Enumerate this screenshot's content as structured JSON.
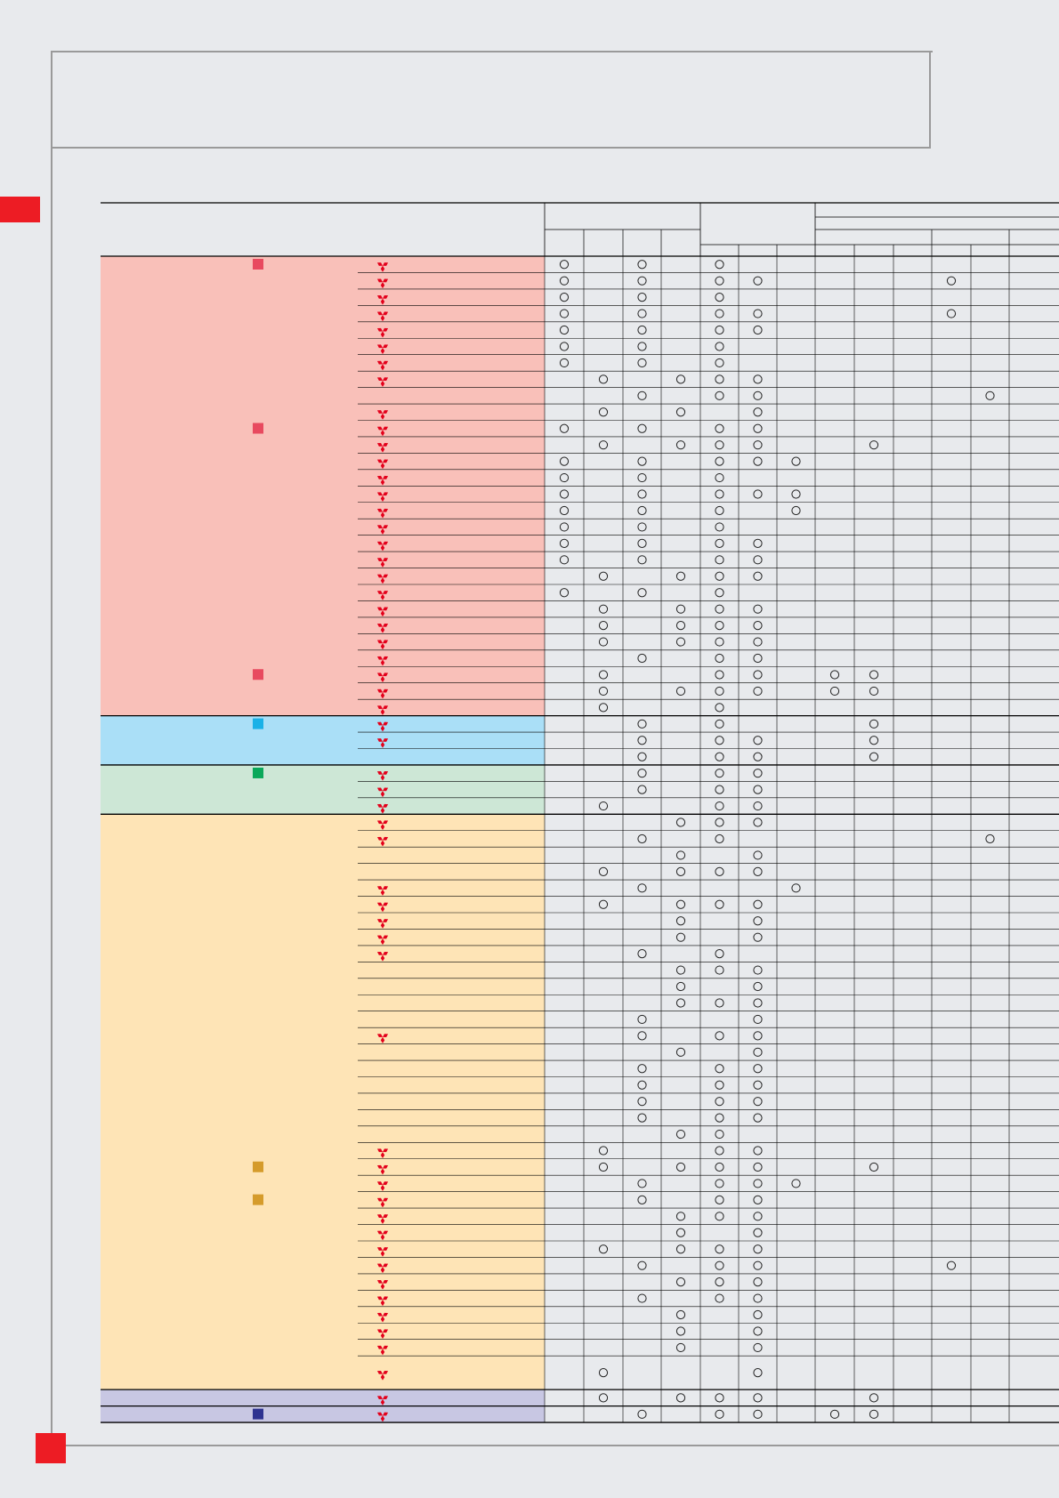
{
  "colors": {
    "background": "#e8eaed",
    "frame": "#9a9a9a",
    "accent": "#ed1c24",
    "group_pink": "#f9c0b9",
    "group_blue": "#aadff7",
    "group_green": "#cde7d6",
    "group_orange": "#fee4b6",
    "group_purple": "#c8c7e3",
    "marker_red": "#e84a5f",
    "marker_cyan": "#1ab1e7",
    "marker_green": "#0aa85a",
    "marker_gold": "#d59b2b",
    "marker_navy": "#2e3390",
    "logo_red": "#e3001b"
  },
  "icons": {
    "brand_logo": "three-diamond-logo-icon",
    "availability_mark": "circle-mark-icon"
  },
  "table": {
    "groups": [
      {
        "name": "pink",
        "color": "group_pink",
        "start": 0,
        "end": 28
      },
      {
        "name": "blue",
        "color": "group_blue",
        "start": 28,
        "end": 31
      },
      {
        "name": "green",
        "color": "group_green",
        "start": 31,
        "end": 34
      },
      {
        "name": "orange",
        "color": "group_orange",
        "start": 34,
        "end": 68
      },
      {
        "name": "purple-tall",
        "color": "group_purple",
        "start": 68,
        "end": 69
      },
      {
        "name": "purple-a",
        "color": "group_purple",
        "start": 69,
        "end": 70
      },
      {
        "name": "purple-b",
        "color": "group_purple",
        "start": 70,
        "end": 71
      }
    ],
    "rows": [
      {
        "logo": true,
        "marks": [
          0,
          2,
          4
        ],
        "marker": "marker_red"
      },
      {
        "logo": true,
        "marks": [
          0,
          2,
          4,
          5,
          10
        ]
      },
      {
        "logo": true,
        "marks": [
          0,
          2,
          4
        ]
      },
      {
        "logo": true,
        "marks": [
          0,
          2,
          4,
          5,
          10
        ]
      },
      {
        "logo": true,
        "marks": [
          0,
          2,
          4,
          5
        ]
      },
      {
        "logo": true,
        "marks": [
          0,
          2,
          4
        ]
      },
      {
        "logo": true,
        "marks": [
          0,
          2,
          4
        ]
      },
      {
        "logo": true,
        "marks": [
          1,
          3,
          4,
          5
        ]
      },
      {
        "logo": false,
        "marks": [
          2,
          4,
          5,
          11
        ]
      },
      {
        "logo": true,
        "marks": [
          1,
          3,
          5
        ]
      },
      {
        "logo": true,
        "marks": [
          0,
          2,
          4,
          5
        ],
        "marker": "marker_red"
      },
      {
        "logo": true,
        "marks": [
          1,
          3,
          4,
          5,
          8
        ]
      },
      {
        "logo": true,
        "marks": [
          0,
          2,
          4,
          5,
          6
        ]
      },
      {
        "logo": true,
        "marks": [
          0,
          2,
          4
        ]
      },
      {
        "logo": true,
        "marks": [
          0,
          2,
          4,
          5,
          6
        ]
      },
      {
        "logo": true,
        "marks": [
          0,
          2,
          4,
          6
        ]
      },
      {
        "logo": true,
        "marks": [
          0,
          2,
          4
        ]
      },
      {
        "logo": true,
        "marks": [
          0,
          2,
          4,
          5
        ]
      },
      {
        "logo": true,
        "marks": [
          0,
          2,
          4,
          5
        ]
      },
      {
        "logo": true,
        "marks": [
          1,
          3,
          4,
          5
        ]
      },
      {
        "logo": true,
        "marks": [
          0,
          2,
          4
        ]
      },
      {
        "logo": true,
        "marks": [
          1,
          3,
          4,
          5
        ]
      },
      {
        "logo": true,
        "marks": [
          1,
          3,
          4,
          5
        ]
      },
      {
        "logo": true,
        "marks": [
          1,
          3,
          4,
          5
        ]
      },
      {
        "logo": true,
        "marks": [
          2,
          4,
          5
        ]
      },
      {
        "logo": true,
        "marks": [
          1,
          4,
          5,
          7,
          8
        ],
        "marker": "marker_red"
      },
      {
        "logo": true,
        "marks": [
          1,
          3,
          4,
          5,
          7,
          8
        ]
      },
      {
        "logo": true,
        "marks": [
          1,
          4
        ]
      },
      {
        "logo": true,
        "marks": [
          2,
          4,
          8
        ],
        "marker": "marker_cyan"
      },
      {
        "logo": true,
        "marks": [
          2,
          4,
          5,
          8
        ]
      },
      {
        "logo": false,
        "marks": [
          2,
          4,
          5,
          8
        ]
      },
      {
        "logo": true,
        "marks": [
          2,
          4,
          5
        ],
        "marker": "marker_green"
      },
      {
        "logo": true,
        "marks": [
          2,
          4,
          5
        ]
      },
      {
        "logo": true,
        "marks": [
          1,
          4,
          5
        ]
      },
      {
        "logo": true,
        "marks": [
          3,
          4,
          5
        ]
      },
      {
        "logo": true,
        "marks": [
          2,
          4,
          11
        ]
      },
      {
        "logo": false,
        "marks": [
          3,
          5
        ]
      },
      {
        "logo": false,
        "marks": [
          1,
          3,
          4,
          5
        ]
      },
      {
        "logo": true,
        "marks": [
          2,
          6
        ]
      },
      {
        "logo": true,
        "marks": [
          1,
          3,
          4,
          5
        ]
      },
      {
        "logo": true,
        "marks": [
          3,
          5
        ]
      },
      {
        "logo": true,
        "marks": [
          3,
          5
        ]
      },
      {
        "logo": true,
        "marks": [
          2,
          4
        ]
      },
      {
        "logo": false,
        "marks": [
          3,
          4,
          5
        ]
      },
      {
        "logo": false,
        "marks": [
          3,
          5
        ]
      },
      {
        "logo": false,
        "marks": [
          3,
          4,
          5
        ]
      },
      {
        "logo": false,
        "marks": [
          2,
          5
        ]
      },
      {
        "logo": true,
        "marks": [
          2,
          4,
          5
        ]
      },
      {
        "logo": false,
        "marks": [
          3,
          5
        ]
      },
      {
        "logo": false,
        "marks": [
          2,
          4,
          5
        ]
      },
      {
        "logo": false,
        "marks": [
          2,
          4,
          5
        ]
      },
      {
        "logo": false,
        "marks": [
          2,
          4,
          5
        ]
      },
      {
        "logo": false,
        "marks": [
          2,
          4,
          5
        ]
      },
      {
        "logo": false,
        "marks": [
          3,
          4
        ]
      },
      {
        "logo": true,
        "marks": [
          1,
          4,
          5
        ]
      },
      {
        "logo": true,
        "marks": [
          1,
          3,
          4,
          5,
          8
        ],
        "marker": "marker_gold"
      },
      {
        "logo": true,
        "marks": [
          2,
          4,
          5,
          6
        ]
      },
      {
        "logo": true,
        "marks": [
          2,
          4,
          5
        ],
        "marker": "marker_gold"
      },
      {
        "logo": true,
        "marks": [
          3,
          4,
          5
        ]
      },
      {
        "logo": true,
        "marks": [
          3,
          5
        ]
      },
      {
        "logo": true,
        "marks": [
          1,
          3,
          4,
          5
        ]
      },
      {
        "logo": true,
        "marks": [
          2,
          4,
          5,
          10
        ]
      },
      {
        "logo": true,
        "marks": [
          3,
          4,
          5
        ]
      },
      {
        "logo": true,
        "marks": [
          2,
          4,
          5
        ]
      },
      {
        "logo": true,
        "marks": [
          3,
          5
        ]
      },
      {
        "logo": true,
        "marks": [
          3,
          5
        ]
      },
      {
        "logo": true,
        "marks": [
          3,
          5
        ]
      },
      {
        "logo": true,
        "marks": [
          1,
          5
        ],
        "tall": true
      },
      {
        "logo": true,
        "marks": [
          1,
          3,
          4,
          5,
          8
        ]
      },
      {
        "logo": true,
        "marks": [
          2,
          4,
          5,
          7,
          8
        ],
        "marker": "marker_navy"
      }
    ]
  }
}
